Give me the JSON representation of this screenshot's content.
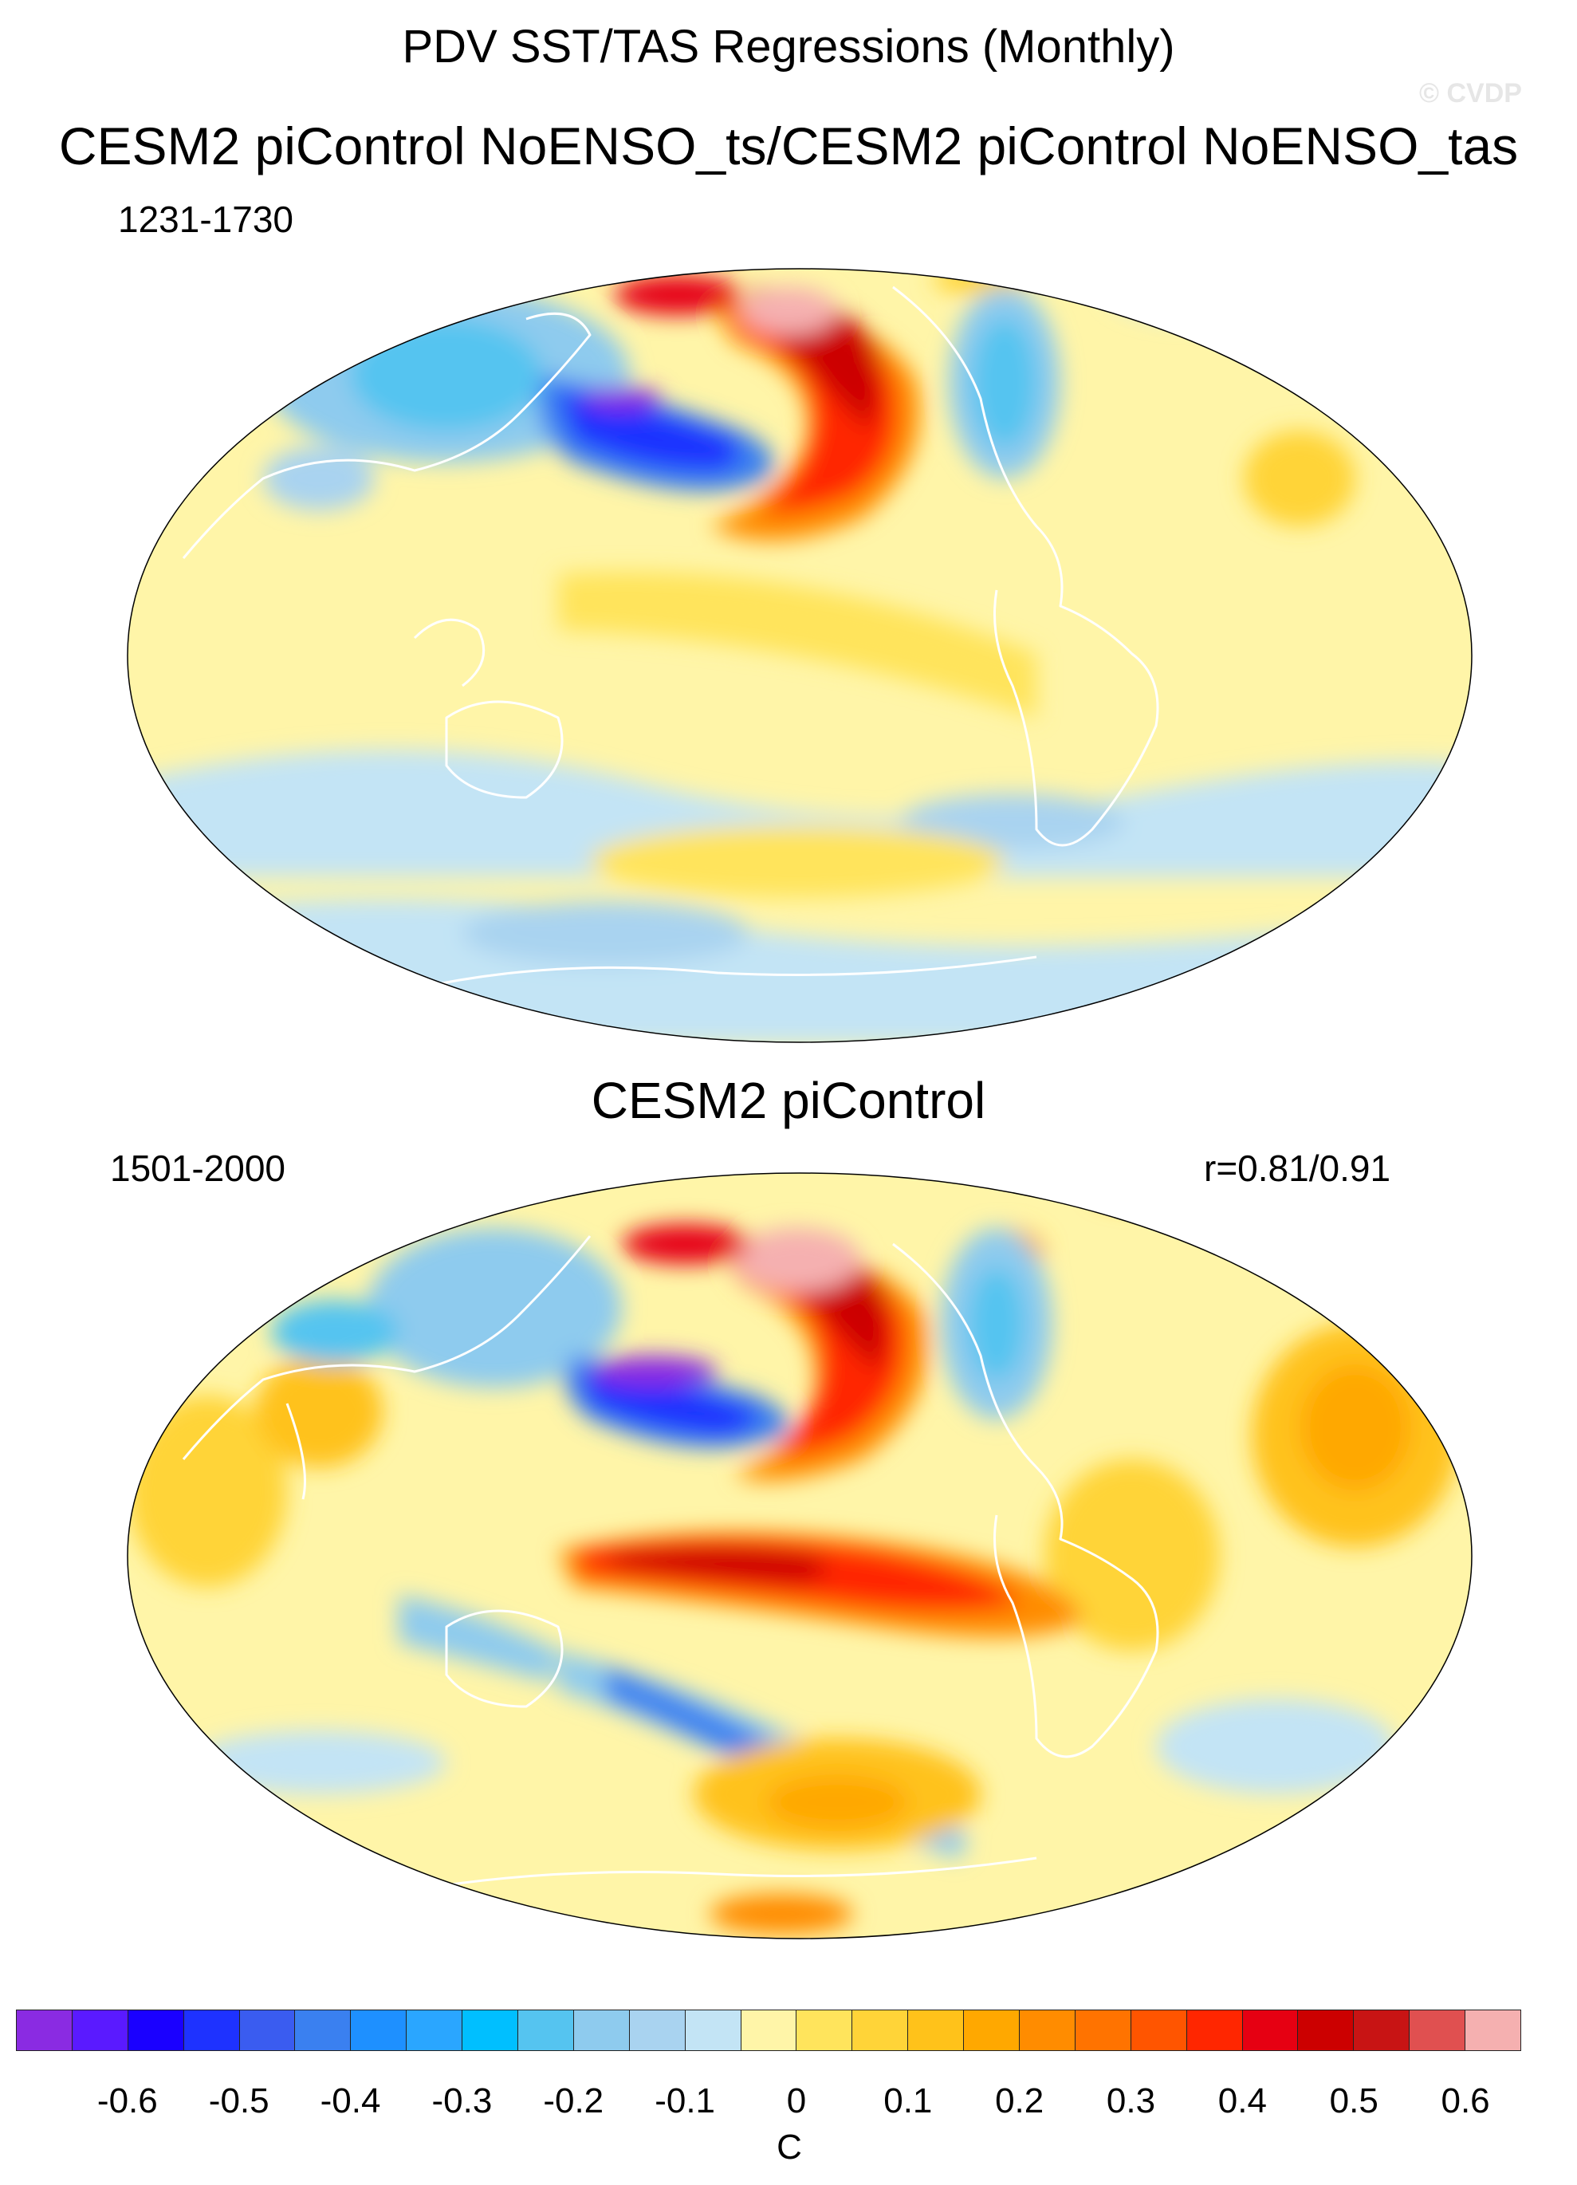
{
  "header": {
    "title": "PDV SST/TAS Regressions (Monthly)",
    "watermark": "© CVDP"
  },
  "panels": [
    {
      "title": "CESM2 piControl NoENSO_ts/CESM2 piControl NoENSO_tas",
      "period": "1231-1730",
      "corr": ""
    },
    {
      "title": "CESM2 piControl",
      "period": "1501-2000",
      "corr": "r=0.81/0.91"
    }
  ],
  "colorbar": {
    "unit": "C",
    "ticks": [
      "-0.6",
      "-0.5",
      "-0.4",
      "-0.3",
      "-0.2",
      "-0.1",
      "0",
      "0.1",
      "0.2",
      "0.3",
      "0.4",
      "0.5",
      "0.6"
    ],
    "colors": [
      "#8a2be2",
      "#5a1aff",
      "#1a00ff",
      "#1e32ff",
      "#3a5cf0",
      "#3a80f0",
      "#1e90ff",
      "#2aa6ff",
      "#00bfff",
      "#55c4f0",
      "#8ecbee",
      "#a9d3f0",
      "#c3e4f5",
      "#fff5a8",
      "#ffe45c",
      "#ffd438",
      "#ffc21a",
      "#ffa800",
      "#ff8c00",
      "#ff7300",
      "#ff5500",
      "#ff2600",
      "#e60012",
      "#cc0000",
      "#c81414",
      "#e05050",
      "#f5b0b0"
    ]
  }
}
